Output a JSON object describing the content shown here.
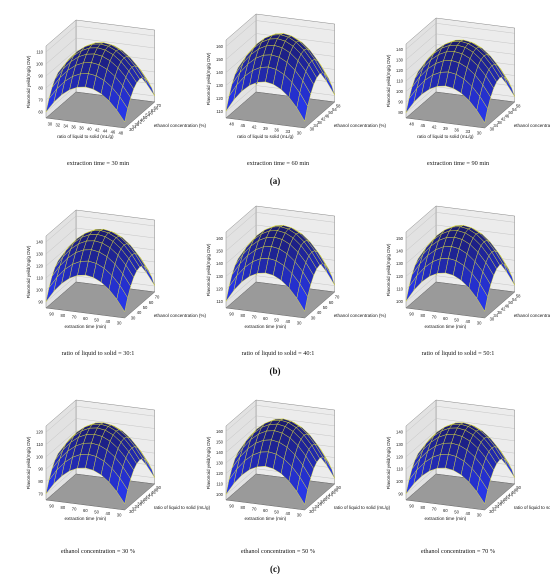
{
  "panels": {
    "a": "(a)",
    "b": "(b)",
    "c": "(c)"
  },
  "captions": {
    "r0c0": "extraction time = 30 min",
    "r0c1": "extraction time = 60 min",
    "r0c2": "extraction time = 90 min",
    "r1c0": "ratio of liquid to solid = 30:1",
    "r1c1": "ratio of liquid to solid = 40:1",
    "r1c2": "ratio of liquid to solid = 50:1",
    "r2c0": "ethanol concentration = 30 %",
    "r2c1": "ethanol concentration = 50 %",
    "r2c2": "ethanol concentration = 70 %"
  },
  "colors": {
    "surface_top": "#1a1a6e",
    "surface_bottom": "#2a3cff",
    "mesh": "#e0e040",
    "floor": "#9a9a9a",
    "wall": "#ececec"
  },
  "chart_data": [
    {
      "type": "surface",
      "caption": "extraction time = 30 min",
      "xlabel": "ratio of liquid to solid (mL/g)",
      "ylabel": "ethanol concentration (%)",
      "zlabel": "Flavonoid yeild(mg/g DW)",
      "xticks": [
        "30",
        "32",
        "34",
        "36",
        "38",
        "40",
        "42",
        "44",
        "46",
        "48"
      ],
      "yticks": [
        "30",
        "34",
        "38",
        "42",
        "46",
        "50",
        "54",
        "58",
        "62",
        "66",
        "70"
      ],
      "zticks": [
        "60",
        "70",
        "80",
        "90",
        "100",
        "110"
      ],
      "zlim": [
        55,
        115
      ],
      "x_range": [
        30,
        50
      ],
      "y_range": [
        30,
        70
      ],
      "peak": 110,
      "corner_min": 60
    },
    {
      "type": "surface",
      "caption": "extraction time = 60 min",
      "xlabel": "ratio of liquid to solid (mL/g)",
      "ylabel": "ethanol concentration (%)",
      "zlabel": "Flavonoid yeild(mg/g DW)",
      "xticks": [
        "48",
        "45",
        "42",
        "39",
        "36",
        "33",
        "30"
      ],
      "yticks": [
        "30",
        "34",
        "38",
        "42",
        "46",
        "50",
        "54",
        "58"
      ],
      "zticks": [
        "110",
        "120",
        "130",
        "140",
        "150",
        "160"
      ],
      "zlim": [
        105,
        162
      ],
      "x_range": [
        30,
        50
      ],
      "y_range": [
        30,
        70
      ],
      "peak": 160,
      "corner_min": 110
    },
    {
      "type": "surface",
      "caption": "extraction time = 90 min",
      "xlabel": "ratio of liquid to solid (mL/g)",
      "ylabel": "ethanol concentration (%)",
      "zlabel": "Flavonoid yeild(mg/g DW)",
      "xticks": [
        "48",
        "45",
        "42",
        "39",
        "36",
        "33",
        "30"
      ],
      "yticks": [
        "30",
        "34",
        "38",
        "42",
        "46",
        "50",
        "54",
        "58"
      ],
      "zticks": [
        "80",
        "90",
        "100",
        "110",
        "120",
        "130",
        "140"
      ],
      "zlim": [
        75,
        145
      ],
      "x_range": [
        30,
        50
      ],
      "y_range": [
        30,
        70
      ],
      "peak": 140,
      "corner_min": 80
    },
    {
      "type": "surface",
      "caption": "ratio of liquid to solid = 30:1",
      "xlabel": "extraction time (min)",
      "ylabel": "ethanol concentration (%)",
      "zlabel": "Flavonoid yeild(mg/g DW)",
      "xticks": [
        "90",
        "80",
        "70",
        "60",
        "50",
        "40",
        "30"
      ],
      "yticks": [
        "30",
        "40",
        "50",
        "60",
        "70"
      ],
      "zticks": [
        "90",
        "100",
        "110",
        "120",
        "130",
        "140"
      ],
      "zlim": [
        85,
        142
      ],
      "x_range": [
        30,
        90
      ],
      "y_range": [
        30,
        70
      ],
      "peak": 140,
      "corner_min": 90
    },
    {
      "type": "surface",
      "caption": "ratio of liquid to solid = 40:1",
      "xlabel": "extraction time (min)",
      "ylabel": "ethanol concentration (%)",
      "zlabel": "Flavonoid yeild(mg/g DW)",
      "xticks": [
        "90",
        "80",
        "70",
        "60",
        "50",
        "40",
        "30"
      ],
      "yticks": [
        "30",
        "40",
        "50",
        "60",
        "70"
      ],
      "zticks": [
        "110",
        "120",
        "130",
        "140",
        "150",
        "160"
      ],
      "zlim": [
        105,
        162
      ],
      "x_range": [
        30,
        90
      ],
      "y_range": [
        30,
        70
      ],
      "peak": 160,
      "corner_min": 110
    },
    {
      "type": "surface",
      "caption": "ratio of liquid to solid = 50:1",
      "xlabel": "extraction time (min)",
      "ylabel": "ethanol concentration (%)",
      "zlabel": "Flavonoid yeild(mg/g DW)",
      "xticks": [
        "90",
        "80",
        "70",
        "60",
        "50",
        "40",
        "30"
      ],
      "yticks": [
        "30",
        "34",
        "38",
        "42",
        "46",
        "50",
        "54",
        "58"
      ],
      "zticks": [
        "100",
        "110",
        "120",
        "130",
        "140",
        "150"
      ],
      "zlim": [
        95,
        152
      ],
      "x_range": [
        30,
        90
      ],
      "y_range": [
        30,
        70
      ],
      "peak": 150,
      "corner_min": 100
    },
    {
      "type": "surface",
      "caption": "ethanol concentration = 30 %",
      "xlabel": "extraction time (min)",
      "ylabel": "ratio of liquid to solid (mL/g)",
      "zlabel": "Flavonoid yeild(mg/g DW)",
      "xticks": [
        "90",
        "80",
        "70",
        "60",
        "50",
        "40",
        "30"
      ],
      "yticks": [
        "30",
        "32",
        "34",
        "36",
        "38",
        "40",
        "42",
        "44",
        "46",
        "48",
        "50"
      ],
      "zticks": [
        "70",
        "80",
        "90",
        "100",
        "110",
        "120"
      ],
      "zlim": [
        65,
        125
      ],
      "x_range": [
        30,
        90
      ],
      "y_range": [
        30,
        50
      ],
      "peak": 120,
      "corner_min": 70
    },
    {
      "type": "surface",
      "caption": "ethanol concentration = 50 %",
      "xlabel": "extraction time (min)",
      "ylabel": "ratio of liquid to solid (mL/g)",
      "zlabel": "Flavonoid yeild(mg/g DW)",
      "xticks": [
        "90",
        "80",
        "70",
        "60",
        "50",
        "40",
        "30"
      ],
      "yticks": [
        "30",
        "32",
        "34",
        "36",
        "38",
        "40",
        "42",
        "44",
        "46",
        "48",
        "50"
      ],
      "zticks": [
        "100",
        "110",
        "120",
        "130",
        "140",
        "150",
        "160"
      ],
      "zlim": [
        95,
        162
      ],
      "x_range": [
        30,
        90
      ],
      "y_range": [
        30,
        50
      ],
      "peak": 160,
      "corner_min": 100
    },
    {
      "type": "surface",
      "caption": "ethanol concentration = 70 %",
      "xlabel": "extraction time (min)",
      "ylabel": "ratio of liquid to solid (mL/g)",
      "zlabel": "Flavonoid yeild(mg/g DW)",
      "xticks": [
        "90",
        "80",
        "70",
        "60",
        "50",
        "40",
        "30"
      ],
      "yticks": [
        "30",
        "32",
        "34",
        "36",
        "38",
        "40",
        "42",
        "44",
        "46",
        "48",
        "50"
      ],
      "zticks": [
        "90",
        "100",
        "110",
        "120",
        "130",
        "140"
      ],
      "zlim": [
        85,
        145
      ],
      "x_range": [
        30,
        90
      ],
      "y_range": [
        30,
        50
      ],
      "peak": 140,
      "corner_min": 90
    }
  ]
}
